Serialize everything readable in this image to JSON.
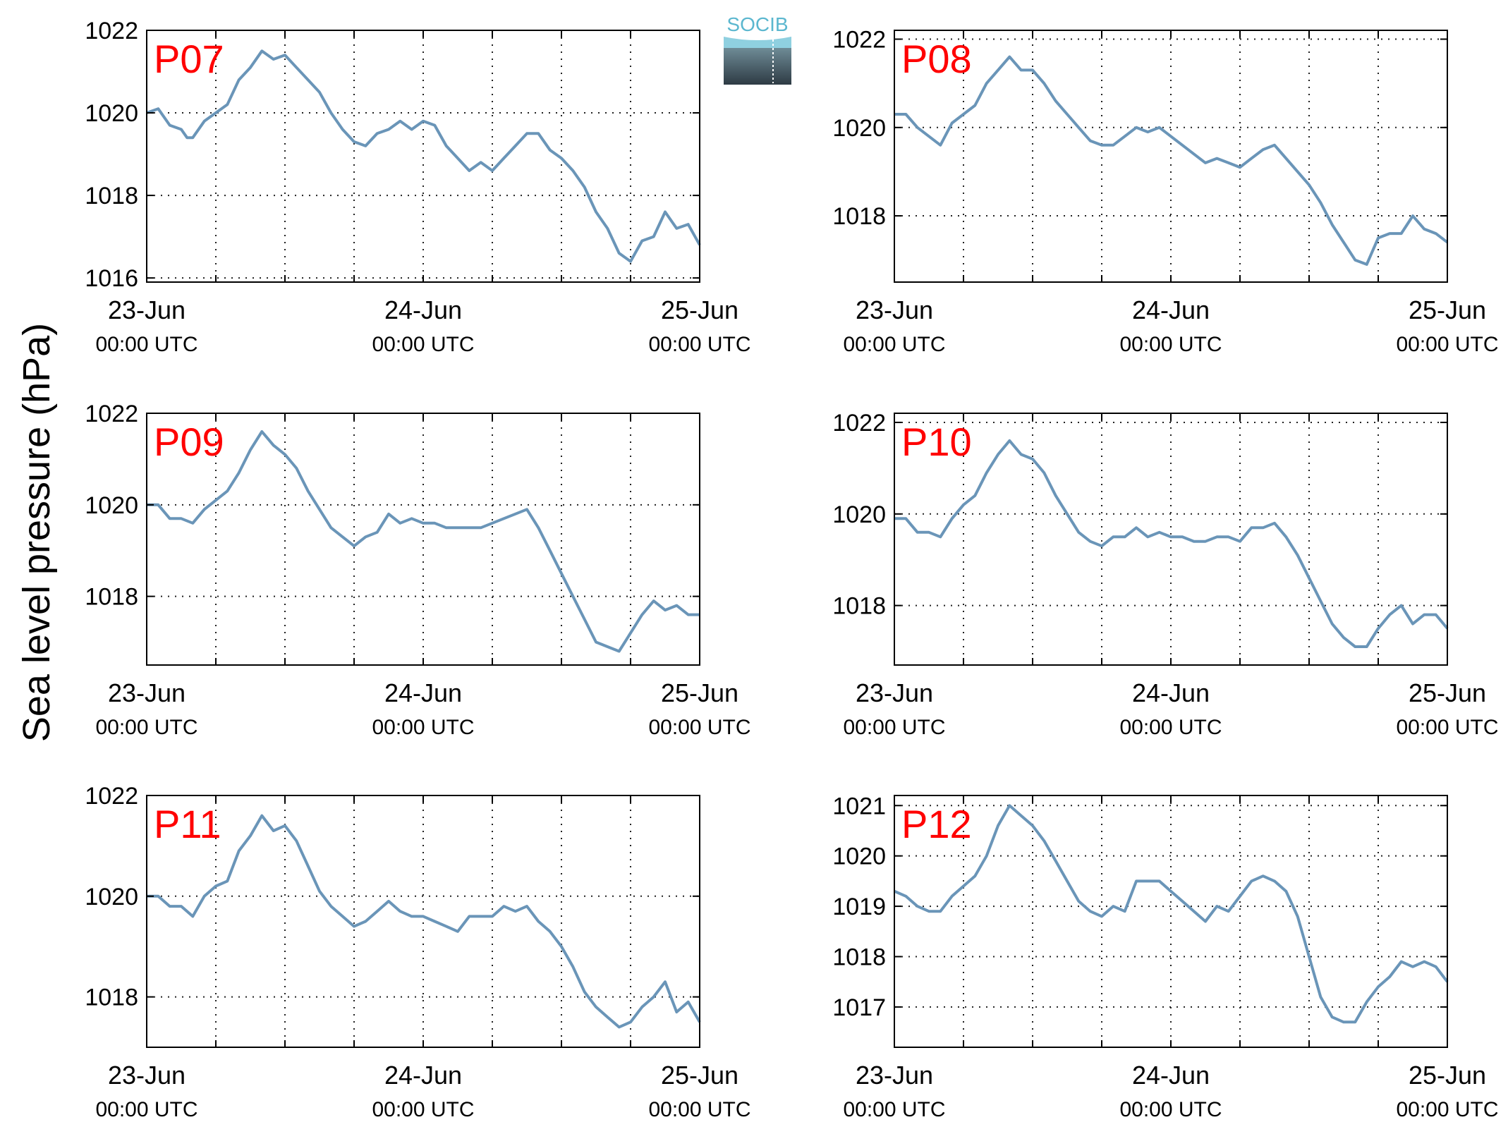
{
  "figure": {
    "ylabel": "Sea level pressure (hPa)",
    "logo_text": "SOCIB",
    "line_color": "#6a95b8",
    "panel_label_color": "#ff0000"
  },
  "chart_data": [
    {
      "type": "line",
      "panel_label": "P07",
      "x_unit": "hours since 23-Jun 00:00 UTC",
      "xlim": [
        0,
        48
      ],
      "ylim": [
        1015.9,
        1022.0
      ],
      "yticks": [
        1016,
        1018,
        1020,
        1022
      ],
      "xticks": [
        {
          "value": 0,
          "date": "23-Jun",
          "time": "00:00 UTC"
        },
        {
          "value": 24,
          "date": "24-Jun",
          "time": "00:00 UTC"
        },
        {
          "value": 48,
          "date": "25-Jun",
          "time": "00:00 UTC"
        }
      ],
      "minor_xticks": [
        6,
        12,
        18,
        30,
        36,
        42
      ],
      "grid": true,
      "series": [
        {
          "x": [
            0,
            1,
            2,
            3,
            3.5,
            4,
            5,
            6,
            7,
            8,
            9,
            10,
            11,
            12,
            13,
            14,
            15,
            16,
            17,
            18,
            19,
            20,
            21,
            22,
            23,
            24,
            25,
            26,
            27,
            28,
            29,
            30,
            31,
            32,
            33,
            34,
            35,
            36,
            37,
            38,
            39,
            40,
            41,
            42,
            43,
            44,
            45,
            46,
            47,
            48
          ],
          "y": [
            1020.0,
            1020.1,
            1019.7,
            1019.6,
            1019.4,
            1019.4,
            1019.8,
            1020.0,
            1020.2,
            1020.8,
            1021.1,
            1021.5,
            1021.3,
            1021.4,
            1021.1,
            1020.8,
            1020.5,
            1020.0,
            1019.6,
            1019.3,
            1019.2,
            1019.5,
            1019.6,
            1019.8,
            1019.6,
            1019.8,
            1019.7,
            1019.2,
            1018.9,
            1018.6,
            1018.8,
            1018.6,
            1018.9,
            1019.2,
            1019.5,
            1019.5,
            1019.1,
            1018.9,
            1018.6,
            1018.2,
            1017.6,
            1017.2,
            1016.6,
            1016.4,
            1016.9,
            1017.0,
            1017.6,
            1017.2,
            1017.3,
            1016.8
          ]
        }
      ]
    },
    {
      "type": "line",
      "panel_label": "P08",
      "x_unit": "hours since 23-Jun 00:00 UTC",
      "xlim": [
        0,
        48
      ],
      "ylim": [
        1016.5,
        1022.2
      ],
      "yticks": [
        1018,
        1020,
        1022
      ],
      "xticks": [
        {
          "value": 0,
          "date": "23-Jun",
          "time": "00:00 UTC"
        },
        {
          "value": 24,
          "date": "24-Jun",
          "time": "00:00 UTC"
        },
        {
          "value": 48,
          "date": "25-Jun",
          "time": "00:00 UTC"
        }
      ],
      "minor_xticks": [
        6,
        12,
        18,
        30,
        36,
        42
      ],
      "grid": true,
      "series": [
        {
          "x": [
            0,
            1,
            2,
            3,
            4,
            5,
            6,
            7,
            8,
            9,
            10,
            11,
            12,
            13,
            14,
            15,
            16,
            17,
            18,
            19,
            20,
            21,
            22,
            23,
            24,
            25,
            26,
            27,
            28,
            29,
            30,
            31,
            32,
            33,
            34,
            35,
            36,
            37,
            38,
            39,
            40,
            41,
            42,
            43,
            44,
            45,
            46,
            47,
            48
          ],
          "y": [
            1020.3,
            1020.3,
            1020.0,
            1019.8,
            1019.6,
            1020.1,
            1020.3,
            1020.5,
            1021.0,
            1021.3,
            1021.6,
            1021.3,
            1021.3,
            1021.0,
            1020.6,
            1020.3,
            1020.0,
            1019.7,
            1019.6,
            1019.6,
            1019.8,
            1020.0,
            1019.9,
            1020.0,
            1019.8,
            1019.6,
            1019.4,
            1019.2,
            1019.3,
            1019.2,
            1019.1,
            1019.3,
            1019.5,
            1019.6,
            1019.3,
            1019.0,
            1018.7,
            1018.3,
            1017.8,
            1017.4,
            1017.0,
            1016.9,
            1017.5,
            1017.6,
            1017.6,
            1018.0,
            1017.7,
            1017.6,
            1017.4
          ]
        }
      ]
    },
    {
      "type": "line",
      "panel_label": "P09",
      "x_unit": "hours since 23-Jun 00:00 UTC",
      "xlim": [
        0,
        48
      ],
      "ylim": [
        1016.5,
        1022.0
      ],
      "yticks": [
        1018,
        1020,
        1022
      ],
      "xticks": [
        {
          "value": 0,
          "date": "23-Jun",
          "time": "00:00 UTC"
        },
        {
          "value": 24,
          "date": "24-Jun",
          "time": "00:00 UTC"
        },
        {
          "value": 48,
          "date": "25-Jun",
          "time": "00:00 UTC"
        }
      ],
      "minor_xticks": [
        6,
        12,
        18,
        30,
        36,
        42
      ],
      "grid": true,
      "series": [
        {
          "x": [
            0,
            1,
            2,
            3,
            4,
            5,
            6,
            7,
            8,
            9,
            10,
            11,
            12,
            13,
            14,
            15,
            16,
            17,
            18,
            19,
            20,
            21,
            22,
            23,
            24,
            25,
            26,
            27,
            28,
            29,
            30,
            31,
            32,
            33,
            34,
            35,
            36,
            37,
            38,
            39,
            40,
            41,
            42,
            43,
            44,
            45,
            46,
            47,
            48
          ],
          "y": [
            1020.0,
            1020.0,
            1019.7,
            1019.7,
            1019.6,
            1019.9,
            1020.1,
            1020.3,
            1020.7,
            1021.2,
            1021.6,
            1021.3,
            1021.1,
            1020.8,
            1020.3,
            1019.9,
            1019.5,
            1019.3,
            1019.1,
            1019.3,
            1019.4,
            1019.8,
            1019.6,
            1019.7,
            1019.6,
            1019.6,
            1019.5,
            1019.5,
            1019.5,
            1019.5,
            1019.6,
            1019.7,
            1019.8,
            1019.9,
            1019.5,
            1019.0,
            1018.5,
            1018.0,
            1017.5,
            1017.0,
            1016.9,
            1016.8,
            1017.2,
            1017.6,
            1017.9,
            1017.7,
            1017.8,
            1017.6,
            1017.6
          ]
        }
      ]
    },
    {
      "type": "line",
      "panel_label": "P10",
      "x_unit": "hours since 23-Jun 00:00 UTC",
      "xlim": [
        0,
        48
      ],
      "ylim": [
        1016.7,
        1022.2
      ],
      "yticks": [
        1018,
        1020,
        1022
      ],
      "xticks": [
        {
          "value": 0,
          "date": "23-Jun",
          "time": "00:00 UTC"
        },
        {
          "value": 24,
          "date": "24-Jun",
          "time": "00:00 UTC"
        },
        {
          "value": 48,
          "date": "25-Jun",
          "time": "00:00 UTC"
        }
      ],
      "minor_xticks": [
        6,
        12,
        18,
        30,
        36,
        42
      ],
      "grid": true,
      "series": [
        {
          "x": [
            0,
            1,
            2,
            3,
            4,
            5,
            6,
            7,
            8,
            9,
            10,
            11,
            12,
            13,
            14,
            15,
            16,
            17,
            18,
            19,
            20,
            21,
            22,
            23,
            24,
            25,
            26,
            27,
            28,
            29,
            30,
            31,
            32,
            33,
            34,
            35,
            36,
            37,
            38,
            39,
            40,
            41,
            42,
            43,
            44,
            45,
            46,
            47,
            48
          ],
          "y": [
            1019.9,
            1019.9,
            1019.6,
            1019.6,
            1019.5,
            1019.9,
            1020.2,
            1020.4,
            1020.9,
            1021.3,
            1021.6,
            1021.3,
            1021.2,
            1020.9,
            1020.4,
            1020.0,
            1019.6,
            1019.4,
            1019.3,
            1019.5,
            1019.5,
            1019.7,
            1019.5,
            1019.6,
            1019.5,
            1019.5,
            1019.4,
            1019.4,
            1019.5,
            1019.5,
            1019.4,
            1019.7,
            1019.7,
            1019.8,
            1019.5,
            1019.1,
            1018.6,
            1018.1,
            1017.6,
            1017.3,
            1017.1,
            1017.1,
            1017.5,
            1017.8,
            1018.0,
            1017.6,
            1017.8,
            1017.8,
            1017.5
          ]
        }
      ]
    },
    {
      "type": "line",
      "panel_label": "P11",
      "x_unit": "hours since 23-Jun 00:00 UTC",
      "xlim": [
        0,
        48
      ],
      "ylim": [
        1017.0,
        1022.0
      ],
      "yticks": [
        1018,
        1020,
        1022
      ],
      "xticks": [
        {
          "value": 0,
          "date": "23-Jun",
          "time": "00:00 UTC"
        },
        {
          "value": 24,
          "date": "24-Jun",
          "time": "00:00 UTC"
        },
        {
          "value": 48,
          "date": "25-Jun",
          "time": "00:00 UTC"
        }
      ],
      "minor_xticks": [
        6,
        12,
        18,
        30,
        36,
        42
      ],
      "grid": true,
      "series": [
        {
          "x": [
            0,
            1,
            2,
            3,
            4,
            5,
            6,
            7,
            8,
            9,
            10,
            11,
            12,
            13,
            14,
            15,
            16,
            17,
            18,
            19,
            20,
            21,
            22,
            23,
            24,
            25,
            26,
            27,
            28,
            29,
            30,
            31,
            32,
            33,
            34,
            35,
            36,
            37,
            38,
            39,
            40,
            41,
            42,
            43,
            44,
            45,
            46,
            47,
            48
          ],
          "y": [
            1020.0,
            1020.0,
            1019.8,
            1019.8,
            1019.6,
            1020.0,
            1020.2,
            1020.3,
            1020.9,
            1021.2,
            1021.6,
            1021.3,
            1021.4,
            1021.1,
            1020.6,
            1020.1,
            1019.8,
            1019.6,
            1019.4,
            1019.5,
            1019.7,
            1019.9,
            1019.7,
            1019.6,
            1019.6,
            1019.5,
            1019.4,
            1019.3,
            1019.6,
            1019.6,
            1019.6,
            1019.8,
            1019.7,
            1019.8,
            1019.5,
            1019.3,
            1019.0,
            1018.6,
            1018.1,
            1017.8,
            1017.6,
            1017.4,
            1017.5,
            1017.8,
            1018.0,
            1018.3,
            1017.7,
            1017.9,
            1017.5
          ]
        }
      ]
    },
    {
      "type": "line",
      "panel_label": "P12",
      "x_unit": "hours since 23-Jun 00:00 UTC",
      "xlim": [
        0,
        48
      ],
      "ylim": [
        1016.2,
        1021.2
      ],
      "yticks": [
        1017,
        1018,
        1019,
        1020,
        1021
      ],
      "xticks": [
        {
          "value": 0,
          "date": "23-Jun",
          "time": "00:00 UTC"
        },
        {
          "value": 24,
          "date": "24-Jun",
          "time": "00:00 UTC"
        },
        {
          "value": 48,
          "date": "25-Jun",
          "time": "00:00 UTC"
        }
      ],
      "minor_xticks": [
        6,
        12,
        18,
        30,
        36,
        42
      ],
      "grid": true,
      "series": [
        {
          "x": [
            0,
            1,
            2,
            3,
            4,
            5,
            6,
            7,
            8,
            9,
            10,
            11,
            12,
            13,
            14,
            15,
            16,
            17,
            18,
            19,
            20,
            21,
            22,
            23,
            24,
            25,
            26,
            27,
            28,
            29,
            30,
            31,
            32,
            33,
            34,
            35,
            36,
            37,
            38,
            39,
            40,
            41,
            42,
            43,
            44,
            45,
            46,
            47,
            48
          ],
          "y": [
            1019.3,
            1019.2,
            1019.0,
            1018.9,
            1018.9,
            1019.2,
            1019.4,
            1019.6,
            1020.0,
            1020.6,
            1021.0,
            1020.8,
            1020.6,
            1020.3,
            1019.9,
            1019.5,
            1019.1,
            1018.9,
            1018.8,
            1019.0,
            1018.9,
            1019.5,
            1019.5,
            1019.5,
            1019.3,
            1019.1,
            1018.9,
            1018.7,
            1019.0,
            1018.9,
            1019.2,
            1019.5,
            1019.6,
            1019.5,
            1019.3,
            1018.8,
            1018.0,
            1017.2,
            1016.8,
            1016.7,
            1016.7,
            1017.1,
            1017.4,
            1017.6,
            1017.9,
            1017.8,
            1017.9,
            1017.8,
            1017.5
          ]
        }
      ]
    }
  ]
}
